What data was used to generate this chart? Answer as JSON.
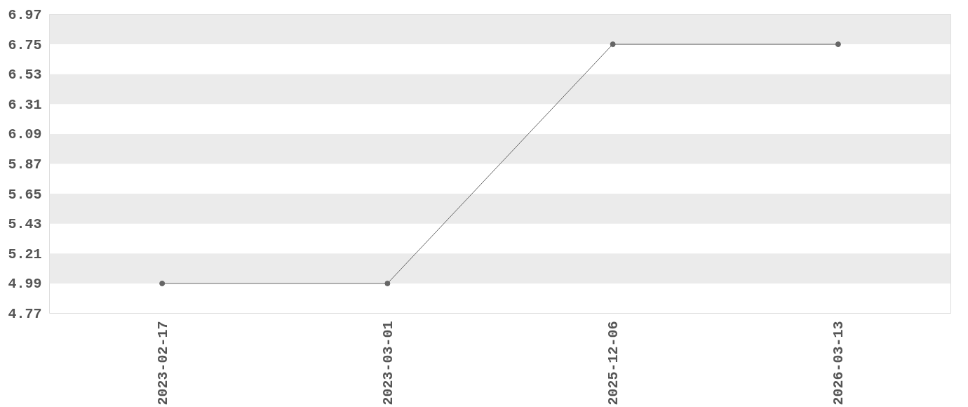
{
  "chart_data": {
    "type": "line",
    "categories": [
      "2023-02-17",
      "2023-03-01",
      "2025-12-06",
      "2026-03-13"
    ],
    "series": [
      {
        "color": "#666666",
        "values": [
          4.99,
          4.99,
          6.75,
          6.75
        ]
      }
    ],
    "ylim": [
      4.77,
      6.97
    ],
    "yticks": [
      4.77,
      4.99,
      5.21,
      5.43,
      5.65,
      5.87,
      6.09,
      6.31,
      6.53,
      6.75,
      6.97
    ],
    "bands": [
      {
        "axis": "y",
        "from": 4.99,
        "to": 5.21,
        "color": "#ebebeb"
      },
      {
        "axis": "y",
        "from": 5.43,
        "to": 5.65,
        "color": "#ebebeb"
      },
      {
        "axis": "y",
        "from": 5.87,
        "to": 6.09,
        "color": "#ebebeb"
      },
      {
        "axis": "y",
        "from": 6.31,
        "to": 6.53,
        "color": "#ebebeb"
      },
      {
        "axis": "y",
        "from": 6.75,
        "to": 6.97,
        "color": "#ebebeb"
      }
    ],
    "marker": "circle",
    "line_style": "solid"
  }
}
